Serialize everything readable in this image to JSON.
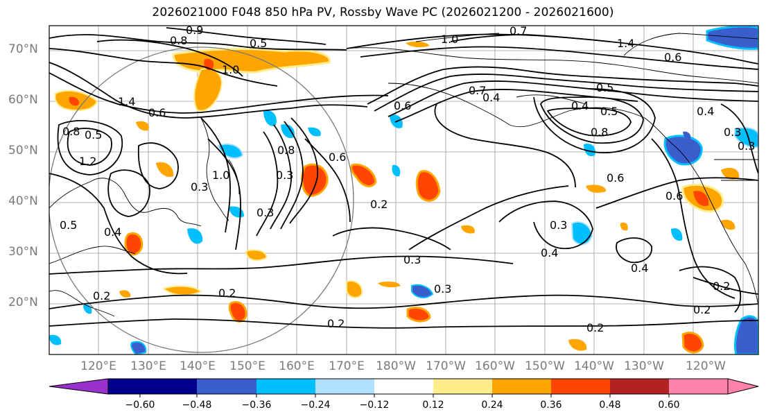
{
  "title": "2026021000 F048 850 hPa PV, Rossby Wave PC (2026021200 - 2026021600)",
  "lat_labels": [
    "70°N",
    "60°N",
    "50°N",
    "40°N",
    "30°N",
    "20°N"
  ],
  "lon_labels": [
    "120°E",
    "130°E",
    "140°E",
    "150°E",
    "160°E",
    "170°E",
    "180°W",
    "170°W",
    "160°W",
    "150°W",
    "140°W",
    "130°W",
    "120°W"
  ],
  "colorbar": {
    "colors": [
      "#9932cc",
      "#00008b",
      "#3a5fcd",
      "#00bfff",
      "#b0e2ff",
      "#ffffff",
      "#ffec8b",
      "#ffa500",
      "#ff4500",
      "#b22222",
      "#ff82ab"
    ],
    "labels": [
      "−0.60",
      "−0.48",
      "−0.36",
      "−0.24",
      "−0.12",
      "0.12",
      "0.24",
      "0.36",
      "0.48",
      "0.60"
    ]
  },
  "contour_labels": [
    "0.9",
    "0.8",
    "0.5",
    "1.0",
    "1.4",
    "0.6",
    "0.8",
    "1.2",
    "0.3",
    "0.4",
    "0.5",
    "0.2",
    "0.7",
    "1.0",
    "1.4",
    "0.5",
    "0.4",
    "0.5",
    "0.4",
    "0.3",
    "0.3",
    "0.8",
    "0.7",
    "0.6",
    "0.8",
    "0.6",
    "0.6",
    "0.6",
    "0.3",
    "0.2",
    "0.3",
    "0.4",
    "0.4",
    "0.2",
    "0.3",
    "0.2",
    "0.2",
    "0.3",
    "0.2",
    "0.2",
    "0.6",
    "1.0",
    "0.3",
    "0.4",
    "0.5"
  ]
}
